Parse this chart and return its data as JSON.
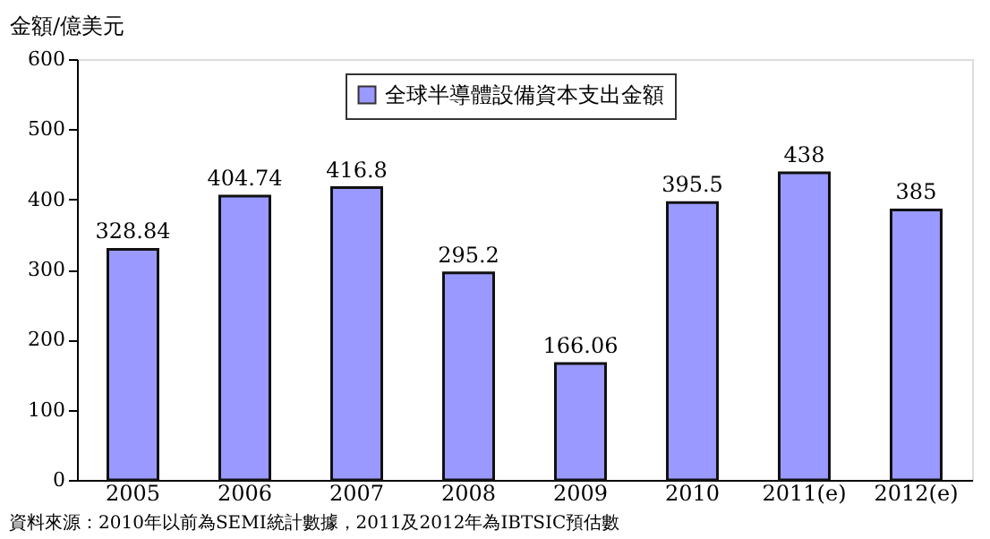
{
  "chart_data": {
    "type": "bar",
    "ylabel": "金額/億美元",
    "categories": [
      "2005",
      "2006",
      "2007",
      "2008",
      "2009",
      "2010",
      "2011(e)",
      "2012(e)"
    ],
    "series": [
      {
        "name": "全球半導體設備資本支出金額",
        "color": "#9999ff",
        "values": [
          328.84,
          404.74,
          416.8,
          295.2,
          166.06,
          395.5,
          438,
          385
        ]
      }
    ],
    "ylim": [
      0,
      600
    ],
    "yticks": [
      0,
      100,
      200,
      300,
      400,
      500,
      600
    ],
    "grid": false,
    "legend": "top",
    "data_labels": true,
    "annotations": [
      "資料來源：2010年以前為SEMI統計數據，2011及2012年為IBTSIC預估數"
    ]
  }
}
